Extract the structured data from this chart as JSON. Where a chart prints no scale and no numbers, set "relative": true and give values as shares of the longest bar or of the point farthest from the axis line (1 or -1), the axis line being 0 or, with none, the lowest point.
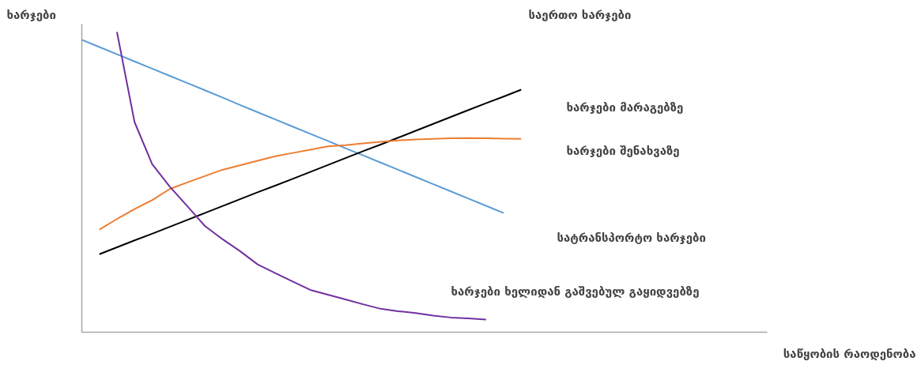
{
  "chart_data": {
    "type": "line",
    "relative": true,
    "xlabel": "საწყობის რაოდენობა",
    "ylabel": "ხარჯები",
    "categories": [
      null,
      null,
      null,
      null,
      null,
      null,
      null,
      null,
      null,
      null,
      null,
      null,
      null,
      null,
      null,
      null,
      null,
      null,
      null,
      null,
      null,
      null,
      null,
      null,
      null,
      null,
      null,
      null,
      null,
      null,
      null,
      null,
      null,
      null,
      null,
      null,
      null,
      null,
      null,
      null
    ],
    "annotations": [
      "საერთო ხარჯები",
      "ხარჯები მარაგებზე",
      "ხარჯები შენახვაზე",
      "სატრანსპორტო ხარჯები",
      "ხარჯები ხელიდან გაშვებულ გაყიდვებზე"
    ],
    "series": [
      {
        "color": "#5b9bd5",
        "values": [
          0.974,
          0.95,
          0.926,
          0.902,
          0.878,
          0.854,
          0.83,
          0.806,
          0.782,
          0.757,
          0.733,
          0.709,
          0.685,
          0.661,
          0.637,
          0.613,
          0.589,
          0.565,
          0.541,
          0.517,
          0.493,
          0.469,
          0.445,
          0.421,
          0.397,
          null,
          null,
          null,
          null,
          null,
          null,
          null,
          null,
          null,
          null,
          null,
          null,
          null,
          null,
          null
        ]
      },
      {
        "color": "#000000",
        "values": [
          null,
          0.26,
          0.283,
          0.306,
          0.328,
          0.351,
          0.374,
          0.397,
          0.42,
          0.443,
          0.466,
          0.488,
          0.511,
          0.534,
          0.557,
          0.58,
          0.603,
          0.625,
          0.648,
          0.671,
          0.694,
          0.717,
          0.74,
          0.763,
          0.785,
          0.808,
          null,
          null,
          null,
          null,
          null,
          null,
          null,
          null,
          null,
          null,
          null,
          null,
          null,
          null
        ]
      },
      {
        "color": "#ed7d31",
        "values": [
          null,
          0.342,
          0.377,
          0.41,
          0.44,
          0.477,
          0.499,
          0.52,
          0.541,
          0.556,
          0.571,
          0.586,
          0.597,
          0.608,
          0.619,
          0.623,
          0.629,
          0.634,
          0.639,
          0.642,
          0.644,
          0.646,
          0.647,
          0.646,
          0.645,
          0.644,
          null,
          null,
          null,
          null,
          null,
          null,
          null,
          null,
          null,
          null,
          null,
          null,
          null,
          null
        ]
      },
      {
        "color": "#7030a0",
        "values": [
          null,
          null,
          1.0,
          0.7,
          0.56,
          0.485,
          0.42,
          0.354,
          0.31,
          0.27,
          0.226,
          0.197,
          0.169,
          0.141,
          0.125,
          0.109,
          0.093,
          0.078,
          0.07,
          0.064,
          0.055,
          0.049,
          0.046,
          0.042,
          null,
          null,
          null,
          null,
          null,
          null,
          null,
          null,
          null,
          null,
          null,
          null,
          null,
          null,
          null,
          null
        ]
      }
    ]
  }
}
